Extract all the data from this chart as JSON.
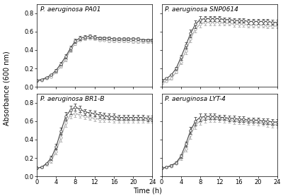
{
  "titles": [
    "P. aeruginosa PA01",
    "P. aeruginosa SNP0614",
    "P. aeruginosa BR1-B",
    "P. aeruginosa LYT-4"
  ],
  "ylabel": "Absorbance (600 nm)",
  "xlabel": "Time (h)",
  "time": [
    0,
    1,
    2,
    3,
    4,
    5,
    6,
    7,
    8,
    9,
    10,
    11,
    12,
    13,
    14,
    15,
    16,
    17,
    18,
    19,
    20,
    21,
    22,
    23,
    24
  ],
  "PA01": {
    "line1": [
      0.07,
      0.08,
      0.1,
      0.13,
      0.18,
      0.25,
      0.33,
      0.42,
      0.5,
      0.53,
      0.54,
      0.55,
      0.54,
      0.53,
      0.53,
      0.53,
      0.52,
      0.52,
      0.52,
      0.52,
      0.52,
      0.52,
      0.51,
      0.51,
      0.51
    ],
    "line1_err": [
      0.005,
      0.005,
      0.008,
      0.01,
      0.015,
      0.02,
      0.025,
      0.025,
      0.025,
      0.02,
      0.02,
      0.02,
      0.02,
      0.015,
      0.015,
      0.015,
      0.015,
      0.015,
      0.015,
      0.015,
      0.015,
      0.015,
      0.015,
      0.015,
      0.015
    ],
    "line2": [
      0.06,
      0.07,
      0.09,
      0.11,
      0.16,
      0.22,
      0.3,
      0.4,
      0.47,
      0.51,
      0.52,
      0.53,
      0.52,
      0.51,
      0.51,
      0.5,
      0.5,
      0.5,
      0.5,
      0.5,
      0.49,
      0.49,
      0.49,
      0.49,
      0.49
    ],
    "line2_err": [
      0.005,
      0.005,
      0.008,
      0.01,
      0.012,
      0.015,
      0.02,
      0.02,
      0.02,
      0.015,
      0.015,
      0.015,
      0.015,
      0.015,
      0.015,
      0.015,
      0.015,
      0.015,
      0.015,
      0.015,
      0.015,
      0.015,
      0.015,
      0.015,
      0.015
    ],
    "ylim": [
      0.0,
      0.9
    ]
  },
  "SNP0614": {
    "line1": [
      0.07,
      0.09,
      0.13,
      0.2,
      0.32,
      0.45,
      0.58,
      0.68,
      0.73,
      0.74,
      0.74,
      0.74,
      0.74,
      0.73,
      0.73,
      0.72,
      0.72,
      0.72,
      0.71,
      0.71,
      0.71,
      0.71,
      0.71,
      0.7,
      0.7
    ],
    "line1_err": [
      0.005,
      0.008,
      0.01,
      0.015,
      0.025,
      0.035,
      0.04,
      0.04,
      0.035,
      0.03,
      0.03,
      0.03,
      0.03,
      0.025,
      0.025,
      0.025,
      0.025,
      0.025,
      0.025,
      0.025,
      0.025,
      0.025,
      0.025,
      0.025,
      0.025
    ],
    "line2": [
      0.04,
      0.06,
      0.09,
      0.16,
      0.27,
      0.39,
      0.52,
      0.63,
      0.68,
      0.7,
      0.7,
      0.7,
      0.7,
      0.69,
      0.69,
      0.68,
      0.68,
      0.68,
      0.67,
      0.67,
      0.67,
      0.67,
      0.66,
      0.66,
      0.66
    ],
    "line2_err": [
      0.005,
      0.008,
      0.01,
      0.015,
      0.025,
      0.035,
      0.04,
      0.04,
      0.035,
      0.03,
      0.03,
      0.03,
      0.03,
      0.025,
      0.025,
      0.025,
      0.025,
      0.025,
      0.025,
      0.025,
      0.025,
      0.025,
      0.025,
      0.025,
      0.025
    ],
    "ylim": [
      0.0,
      0.9
    ]
  },
  "BR1B": {
    "line1": [
      0.09,
      0.1,
      0.14,
      0.2,
      0.32,
      0.49,
      0.65,
      0.72,
      0.75,
      0.73,
      0.7,
      0.69,
      0.68,
      0.67,
      0.66,
      0.65,
      0.65,
      0.64,
      0.64,
      0.64,
      0.64,
      0.64,
      0.64,
      0.63,
      0.63
    ],
    "line1_err": [
      0.005,
      0.008,
      0.01,
      0.02,
      0.03,
      0.04,
      0.045,
      0.045,
      0.04,
      0.035,
      0.03,
      0.03,
      0.03,
      0.03,
      0.03,
      0.03,
      0.03,
      0.03,
      0.03,
      0.03,
      0.03,
      0.03,
      0.03,
      0.03,
      0.03
    ],
    "line2": [
      0.09,
      0.1,
      0.13,
      0.17,
      0.27,
      0.42,
      0.58,
      0.67,
      0.68,
      0.67,
      0.65,
      0.64,
      0.63,
      0.62,
      0.62,
      0.62,
      0.61,
      0.61,
      0.61,
      0.61,
      0.61,
      0.61,
      0.61,
      0.61,
      0.61
    ],
    "line2_err": [
      0.005,
      0.008,
      0.01,
      0.02,
      0.03,
      0.04,
      0.045,
      0.04,
      0.035,
      0.03,
      0.03,
      0.03,
      0.03,
      0.03,
      0.03,
      0.03,
      0.03,
      0.03,
      0.03,
      0.03,
      0.03,
      0.03,
      0.03,
      0.03,
      0.03
    ],
    "ylim": [
      0.0,
      0.9
    ]
  },
  "LYT4": {
    "line1": [
      0.09,
      0.1,
      0.12,
      0.15,
      0.22,
      0.35,
      0.5,
      0.6,
      0.64,
      0.65,
      0.65,
      0.65,
      0.64,
      0.64,
      0.63,
      0.63,
      0.62,
      0.62,
      0.61,
      0.61,
      0.61,
      0.6,
      0.6,
      0.59,
      0.59
    ],
    "line1_err": [
      0.005,
      0.005,
      0.008,
      0.01,
      0.02,
      0.03,
      0.04,
      0.045,
      0.04,
      0.035,
      0.03,
      0.03,
      0.03,
      0.03,
      0.03,
      0.03,
      0.03,
      0.03,
      0.03,
      0.03,
      0.03,
      0.03,
      0.03,
      0.03,
      0.03
    ],
    "line2": [
      0.09,
      0.1,
      0.11,
      0.14,
      0.2,
      0.3,
      0.45,
      0.56,
      0.6,
      0.62,
      0.62,
      0.62,
      0.62,
      0.61,
      0.61,
      0.6,
      0.6,
      0.6,
      0.59,
      0.59,
      0.58,
      0.58,
      0.57,
      0.56,
      0.56
    ],
    "line2_err": [
      0.005,
      0.005,
      0.008,
      0.01,
      0.02,
      0.03,
      0.04,
      0.045,
      0.04,
      0.035,
      0.03,
      0.03,
      0.03,
      0.03,
      0.03,
      0.03,
      0.03,
      0.03,
      0.03,
      0.03,
      0.03,
      0.03,
      0.03,
      0.03,
      0.03
    ],
    "ylim": [
      0.0,
      0.9
    ]
  },
  "line1_color": "#444444",
  "line2_color": "#aaaaaa",
  "marker": "o",
  "markersize": 2.5,
  "linewidth": 0.8,
  "capsize": 1.5,
  "elinewidth": 0.6,
  "title_fontsize": 6.5,
  "tick_fontsize": 6,
  "label_fontsize": 7
}
